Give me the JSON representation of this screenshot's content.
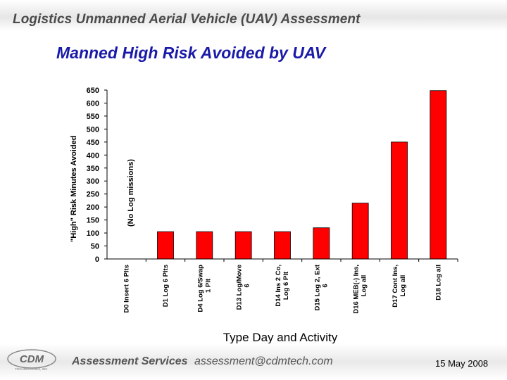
{
  "header": {
    "title": "Logistics Unmanned Aerial Vehicle (UAV) Assessment"
  },
  "slide": {
    "title": "Manned High Risk Avoided by UAV"
  },
  "chart_data": {
    "type": "bar",
    "ylabel": "\"High\" Risk Minutes Avoided",
    "xlabel": "Type Day and Activity",
    "annotation": "(No Log missions)",
    "ylim": [
      0,
      650
    ],
    "yticks": [
      0,
      50,
      100,
      150,
      200,
      250,
      300,
      350,
      400,
      450,
      500,
      550,
      600,
      650
    ],
    "grid": false,
    "bar_color": "#ff0000",
    "categories": [
      [
        "D0 Insert 6 Plts"
      ],
      [
        "D1 Log 6 Plts"
      ],
      [
        "D4 Log 6/Swap",
        "1 Plt"
      ],
      [
        "D13 Log/Move",
        "6"
      ],
      [
        "D14 Ins 2 Co,",
        "Log 6 Plt"
      ],
      [
        "D15 Log 2, Ext",
        "6"
      ],
      [
        "D16 MEB(-) Ins,",
        "Log all"
      ],
      [
        "D17 Cont Ins,",
        "Log all"
      ],
      [
        "D18 Log all"
      ]
    ],
    "values": [
      0,
      105,
      105,
      105,
      105,
      120,
      215,
      450,
      648
    ]
  },
  "footer": {
    "logo_text": "CDM",
    "logo_subtext": "TECHNOLOGIES, INC.",
    "company": "Assessment Services",
    "email": "assessment@cdmtech.com",
    "date": "15 May 2008"
  }
}
